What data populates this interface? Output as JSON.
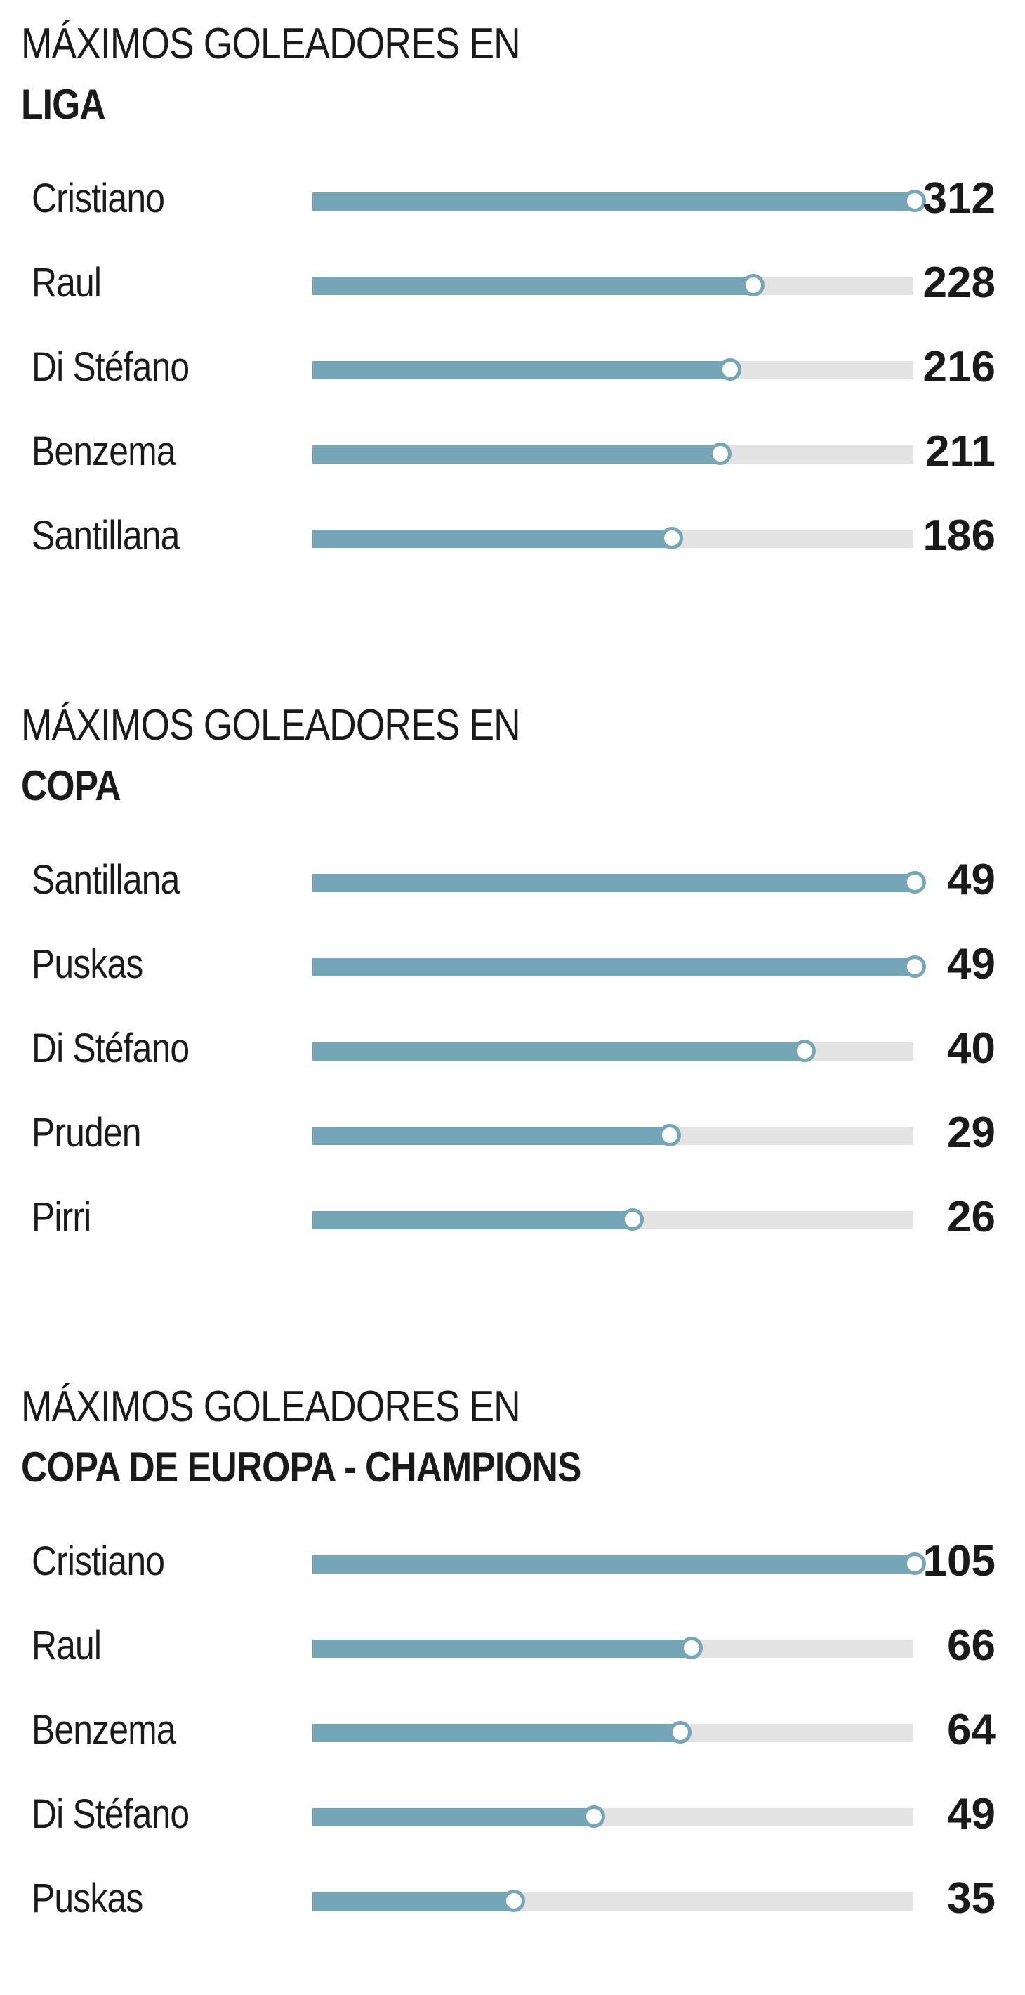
{
  "colors": {
    "bar_fill": "#74a6b8",
    "bar_track": "#e3e3e3",
    "text": "#1a1a1a",
    "background": "#ffffff"
  },
  "chart_data": [
    {
      "type": "bar",
      "orientation": "horizontal",
      "title_prefix": "MÁXIMOS GOLEADORES EN",
      "title": "LIGA",
      "categories": [
        "Cristiano",
        "Raul",
        "Di Stéfano",
        "Benzema",
        "Santillana"
      ],
      "values": [
        312,
        228,
        216,
        211,
        186
      ],
      "value_labels": [
        "312",
        "228",
        "216",
        "211",
        "186"
      ],
      "xlim": [
        0,
        312
      ],
      "grid": false,
      "legend": "none"
    },
    {
      "type": "bar",
      "orientation": "horizontal",
      "title_prefix": "MÁXIMOS GOLEADORES EN",
      "title": "COPA",
      "categories": [
        "Santillana",
        "Puskas",
        "Di Stéfano",
        "Pruden",
        "Pirri"
      ],
      "values": [
        49,
        49,
        40,
        29,
        26
      ],
      "value_labels": [
        "49",
        "49",
        "40",
        "29",
        "26"
      ],
      "xlim": [
        0,
        49
      ],
      "grid": false,
      "legend": "none"
    },
    {
      "type": "bar",
      "orientation": "horizontal",
      "title_prefix": "MÁXIMOS GOLEADORES EN",
      "title": "COPA DE EUROPA - CHAMPIONS",
      "categories": [
        "Cristiano",
        "Raul",
        "Benzema",
        "Di Stéfano",
        "Puskas"
      ],
      "values": [
        105,
        66,
        64,
        49,
        35
      ],
      "value_labels": [
        "105",
        "66",
        "64",
        "49",
        "35"
      ],
      "xlim": [
        0,
        105
      ],
      "grid": false,
      "legend": "none"
    }
  ]
}
